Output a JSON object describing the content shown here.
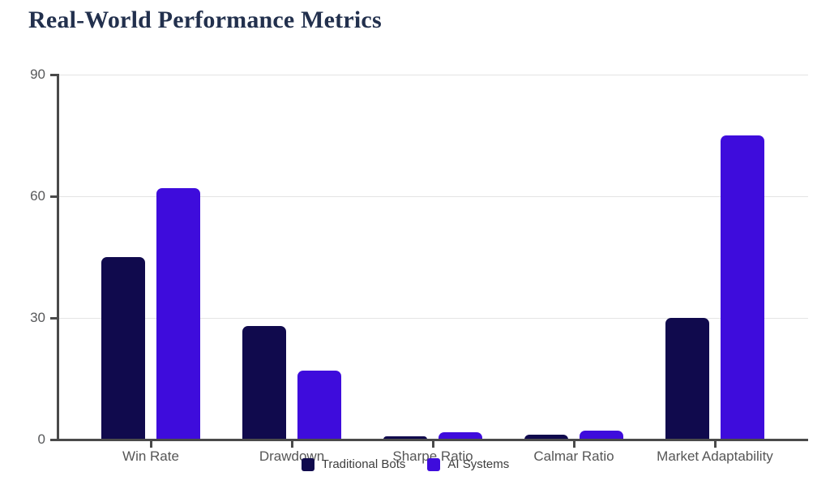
{
  "title": "Real-World Performance Metrics",
  "colors": {
    "title": "#22304D",
    "axis_line": "#4a4a4a",
    "gridline": "#e4e4e4",
    "tick_label": "#58595B",
    "background": "#ffffff"
  },
  "chart_data": {
    "type": "bar",
    "title": "Real-World Performance Metrics",
    "categories": [
      "Win Rate",
      "Drawdown",
      "Sharpe Ratio",
      "Calmar Ratio",
      "Market Adaptability"
    ],
    "series": [
      {
        "name": "Traditional Bots",
        "color": "#100A4D",
        "values": [
          45,
          28,
          0.8,
          1.2,
          30
        ]
      },
      {
        "name": "AI Systems",
        "color": "#3E0CDC",
        "values": [
          62,
          17,
          1.8,
          2.2,
          75
        ]
      }
    ],
    "xlabel": "",
    "ylabel": "",
    "ylim": [
      0,
      90
    ],
    "yticks": [
      0,
      30,
      60,
      90
    ],
    "grid": true,
    "legend_position": "bottom"
  }
}
